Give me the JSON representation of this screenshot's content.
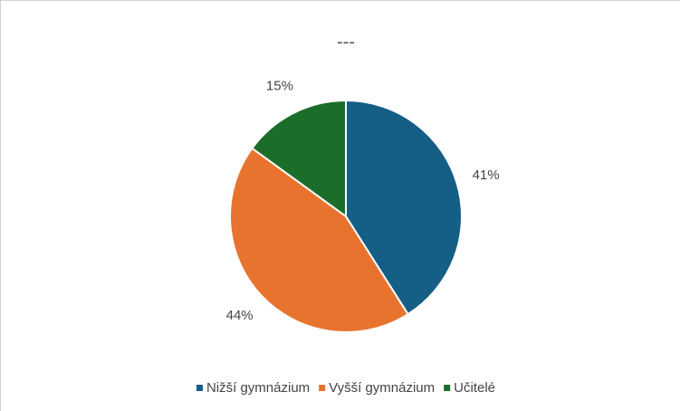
{
  "chart_data": {
    "type": "pie",
    "title": "---",
    "categories": [
      "Nižší gymnázium",
      "Vyšší gymnázium",
      "Učitelé"
    ],
    "values": [
      41,
      44,
      15
    ],
    "value_labels": [
      "41%",
      "44%",
      "15%"
    ],
    "colors": [
      "#155e85",
      "#e8732f",
      "#1b6e2a"
    ],
    "legend": "bottom"
  }
}
